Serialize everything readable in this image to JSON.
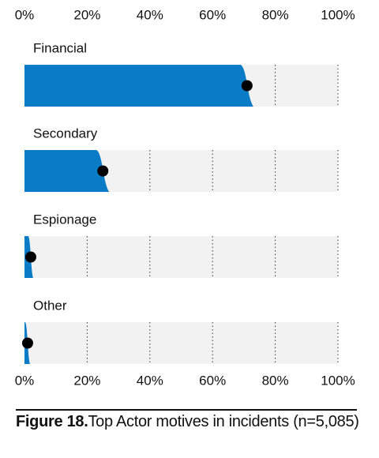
{
  "chart_data": {
    "type": "bar",
    "orientation": "horizontal",
    "categories": [
      "Financial",
      "Secondary",
      "Espionage",
      "Other"
    ],
    "values": [
      71,
      25,
      2,
      1
    ],
    "color": "#0a7bc6",
    "dot_color": "#000000",
    "xlim": [
      0,
      100
    ],
    "xticks": [
      {
        "value": 0,
        "label": "0%"
      },
      {
        "value": 20,
        "label": "20%"
      },
      {
        "value": 40,
        "label": "40%"
      },
      {
        "value": 60,
        "label": "60%"
      },
      {
        "value": 80,
        "label": "80%"
      },
      {
        "value": 100,
        "label": "100%"
      }
    ],
    "grid": true
  },
  "caption": {
    "label": "Figure 18.",
    "text": "Top Actor motives in incidents (n=5,085)"
  }
}
